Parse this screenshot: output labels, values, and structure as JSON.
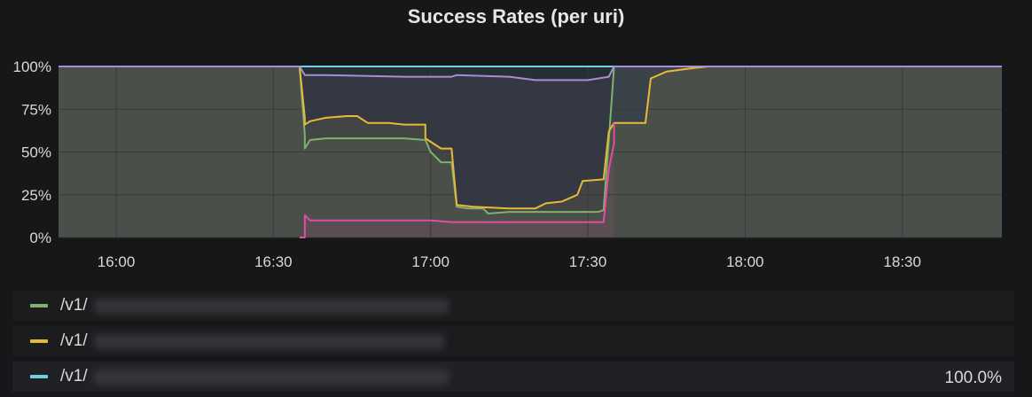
{
  "chart_data": {
    "type": "line",
    "title": "Success Rates (per uri)",
    "x_ticks": [
      "16:00",
      "16:30",
      "17:00",
      "17:30",
      "18:00",
      "18:30"
    ],
    "y_ticks": [
      "0%",
      "25%",
      "50%",
      "75%",
      "100%"
    ],
    "ylim": [
      0,
      100
    ],
    "xlim": [
      "15:49",
      "18:49"
    ],
    "grid": true,
    "legend_position": "bottom",
    "series": [
      {
        "name": "/v1/",
        "color": "#7eb26d",
        "values": [
          {
            "x": "15:49",
            "y": 100
          },
          {
            "x": "16:35",
            "y": 100
          },
          {
            "x": "16:35",
            "y": 100
          },
          {
            "x": "16:36",
            "y": 60
          },
          {
            "x": "16:36",
            "y": 52
          },
          {
            "x": "16:37",
            "y": 57
          },
          {
            "x": "16:40",
            "y": 58
          },
          {
            "x": "16:44",
            "y": 58
          },
          {
            "x": "16:50",
            "y": 58
          },
          {
            "x": "16:55",
            "y": 58
          },
          {
            "x": "16:59",
            "y": 57
          },
          {
            "x": "17:00",
            "y": 50
          },
          {
            "x": "17:02",
            "y": 44
          },
          {
            "x": "17:04",
            "y": 44
          },
          {
            "x": "17:05",
            "y": 18
          },
          {
            "x": "17:07",
            "y": 17
          },
          {
            "x": "17:10",
            "y": 17
          },
          {
            "x": "17:11",
            "y": 14
          },
          {
            "x": "17:15",
            "y": 15
          },
          {
            "x": "17:20",
            "y": 15
          },
          {
            "x": "17:25",
            "y": 15
          },
          {
            "x": "17:32",
            "y": 15
          },
          {
            "x": "17:33",
            "y": 16
          },
          {
            "x": "17:34",
            "y": 57
          },
          {
            "x": "17:35",
            "y": 100
          },
          {
            "x": "18:49",
            "y": 100
          }
        ]
      },
      {
        "name": "/v1/",
        "color": "#eab839",
        "values": [
          {
            "x": "15:49",
            "y": 100
          },
          {
            "x": "16:35",
            "y": 100
          },
          {
            "x": "16:35",
            "y": 100
          },
          {
            "x": "16:36",
            "y": 70
          },
          {
            "x": "16:36",
            "y": 66
          },
          {
            "x": "16:37",
            "y": 68
          },
          {
            "x": "16:40",
            "y": 70
          },
          {
            "x": "16:44",
            "y": 71
          },
          {
            "x": "16:46",
            "y": 71
          },
          {
            "x": "16:48",
            "y": 67
          },
          {
            "x": "16:52",
            "y": 67
          },
          {
            "x": "16:55",
            "y": 66
          },
          {
            "x": "16:59",
            "y": 66
          },
          {
            "x": "16:59",
            "y": 58
          },
          {
            "x": "17:02",
            "y": 52
          },
          {
            "x": "17:04",
            "y": 52
          },
          {
            "x": "17:05",
            "y": 19
          },
          {
            "x": "17:08",
            "y": 18
          },
          {
            "x": "17:15",
            "y": 17
          },
          {
            "x": "17:20",
            "y": 17
          },
          {
            "x": "17:22",
            "y": 20
          },
          {
            "x": "17:25",
            "y": 21
          },
          {
            "x": "17:28",
            "y": 25
          },
          {
            "x": "17:29",
            "y": 33
          },
          {
            "x": "17:33",
            "y": 34
          },
          {
            "x": "17:34",
            "y": 62
          },
          {
            "x": "17:35",
            "y": 67
          },
          {
            "x": "17:41",
            "y": 67
          },
          {
            "x": "17:42",
            "y": 93
          },
          {
            "x": "17:45",
            "y": 97
          },
          {
            "x": "17:50",
            "y": 99
          },
          {
            "x": "17:53",
            "y": 100
          },
          {
            "x": "18:49",
            "y": 100
          }
        ]
      },
      {
        "name": "/v1/",
        "color": "#6ed0e0",
        "legend_value": "100.0%",
        "values": [
          {
            "x": "15:49",
            "y": 100
          },
          {
            "x": "18:49",
            "y": 100
          }
        ]
      },
      {
        "name": "",
        "color": "#a78ed0",
        "values": [
          {
            "x": "15:49",
            "y": 100
          },
          {
            "x": "16:35",
            "y": 100
          },
          {
            "x": "16:35",
            "y": 100
          },
          {
            "x": "16:36",
            "y": 95
          },
          {
            "x": "16:40",
            "y": 95
          },
          {
            "x": "16:55",
            "y": 94
          },
          {
            "x": "17:04",
            "y": 94
          },
          {
            "x": "17:05",
            "y": 95
          },
          {
            "x": "17:15",
            "y": 94
          },
          {
            "x": "17:20",
            "y": 92
          },
          {
            "x": "17:30",
            "y": 92
          },
          {
            "x": "17:34",
            "y": 94
          },
          {
            "x": "17:35",
            "y": 100
          },
          {
            "x": "18:49",
            "y": 100
          }
        ]
      },
      {
        "name": "",
        "color": "#e24d9f",
        "values": [
          {
            "x": "16:35",
            "y": 0
          },
          {
            "x": "16:36",
            "y": 0
          },
          {
            "x": "16:36",
            "y": 13
          },
          {
            "x": "16:37",
            "y": 10
          },
          {
            "x": "16:45",
            "y": 10
          },
          {
            "x": "17:00",
            "y": 10
          },
          {
            "x": "17:04",
            "y": 9
          },
          {
            "x": "17:05",
            "y": 9
          },
          {
            "x": "17:20",
            "y": 9
          },
          {
            "x": "17:33",
            "y": 9
          },
          {
            "x": "17:34",
            "y": 40
          },
          {
            "x": "17:35",
            "y": 55
          },
          {
            "x": "17:35",
            "y": 67
          }
        ]
      }
    ]
  },
  "legend": [
    {
      "prefix": "/v1/",
      "color": "#7eb26d",
      "value": ""
    },
    {
      "prefix": "/v1/",
      "color": "#eab839",
      "value": ""
    },
    {
      "prefix": "/v1/",
      "color": "#6ed0e0",
      "value": "100.0%"
    }
  ]
}
